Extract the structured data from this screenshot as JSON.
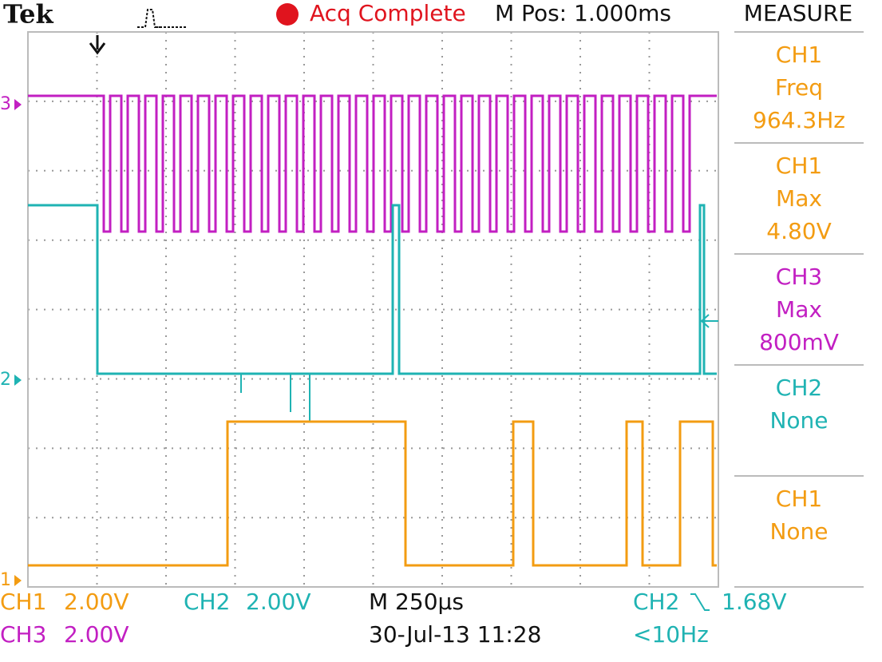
{
  "header": {
    "brand": "Tek",
    "status": "Acq Complete",
    "position": "M Pos: 1.000ms"
  },
  "channel_markers": [
    "3",
    "2",
    "1"
  ],
  "measure": {
    "title": "MEASURE",
    "items": [
      {
        "channel": "CH1",
        "kind": "Freq",
        "value": "964.3Hz"
      },
      {
        "channel": "CH1",
        "kind": "Max",
        "value": "4.80V"
      },
      {
        "channel": "CH3",
        "kind": "Max",
        "value": "800mV"
      },
      {
        "channel": "CH2",
        "kind": "None"
      },
      {
        "channel": "CH1",
        "kind": "None"
      }
    ]
  },
  "footer": {
    "ch1": {
      "label": "CH1",
      "scale": "2.00V"
    },
    "ch2": {
      "label": "CH2",
      "scale": "2.00V"
    },
    "ch3": {
      "label": "CH3",
      "scale": "2.00V"
    },
    "timebase": "M 250µs",
    "date": "30-Jul-13 11:28",
    "trigger": {
      "source": "CH2",
      "level": "1.68V",
      "frequency": "<10Hz"
    }
  }
}
